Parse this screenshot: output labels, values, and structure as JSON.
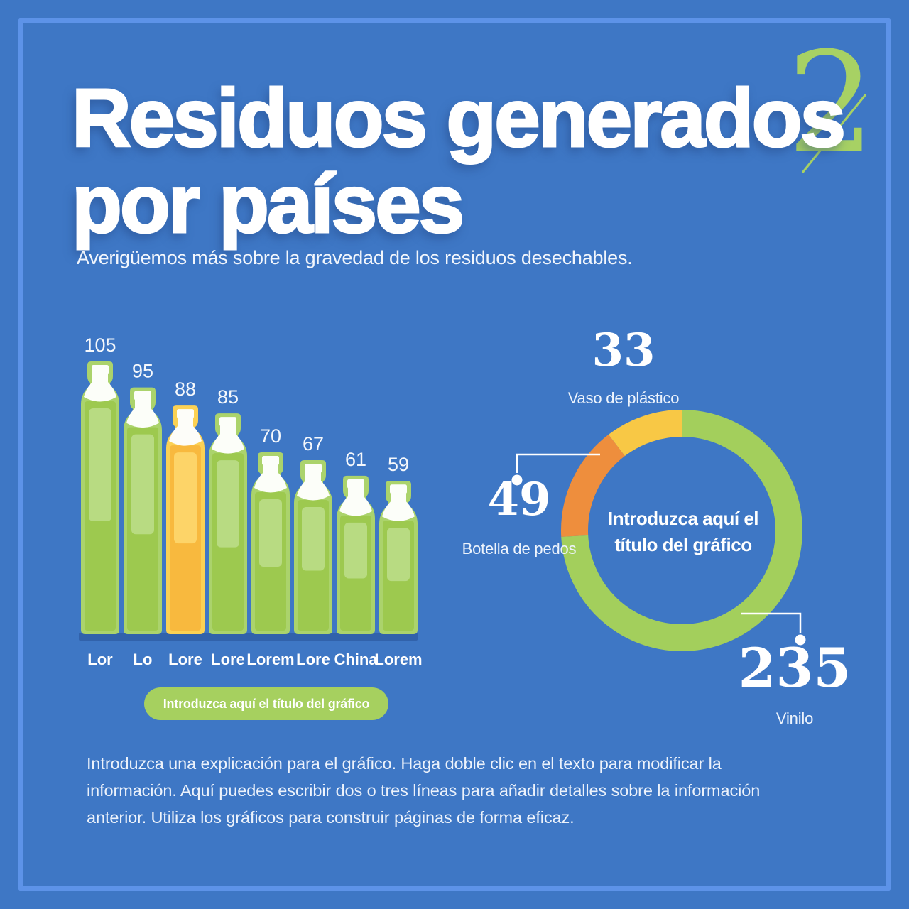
{
  "page": {
    "title_line1": "Residuos generados",
    "title_line2": "por países",
    "subtitle": "Averigüemos más sobre la gravedad de los residuos desechables.",
    "decoration_numeral": "2",
    "footer_paragraph": "Introduzca una explicación para el gráfico. Haga doble clic en el texto para modificar la información. Aquí puedes escribir dos o tres líneas para añadir detalles sobre la información anterior. Utiliza los gráficos para construir páginas de forma eficaz."
  },
  "colors": {
    "background": "#3e77c5",
    "frame": "#5d93e8",
    "deco_green": "#a7d164",
    "white": "#ffffff"
  },
  "chart_data": [
    {
      "type": "bar",
      "bar_style": "bottle",
      "title": "Introduzca aquí el título del gráfico",
      "categories": [
        "Lor",
        "Lo",
        "Lore",
        "Lore",
        "Lorem",
        "Lore",
        "China",
        "Lorem"
      ],
      "values": [
        105,
        95,
        88,
        85,
        70,
        67,
        61,
        59
      ],
      "highlight_index": 2,
      "ylim": [
        0,
        105
      ],
      "grid": false,
      "colors": {
        "baseline": "#3162ab",
        "bottle": {
          "border": "#abd36c",
          "body": "#9dc94f",
          "highlight": "#b8db82",
          "white": "#fcfef9"
        },
        "highlight_bottle": {
          "border": "#fbd154",
          "body": "#f8b93e",
          "highlight": "#fdd468",
          "white": "#fdfdf9"
        }
      }
    },
    {
      "type": "pie",
      "subtype": "donut",
      "start": "top",
      "direction": "clockwise",
      "center_title": "Introduzca aquí el título del gráfico",
      "center_title_lines": [
        "Introduzca aquí el",
        "título del gráfico"
      ],
      "slices": [
        {
          "label": "Vinilo",
          "value": 235,
          "color": "#a3cf5c"
        },
        {
          "label": "Botella de pedos",
          "value": 49,
          "color": "#ee8e3d"
        },
        {
          "label": "Vaso de plástico",
          "value": 33,
          "color": "#f8c845"
        }
      ]
    }
  ]
}
